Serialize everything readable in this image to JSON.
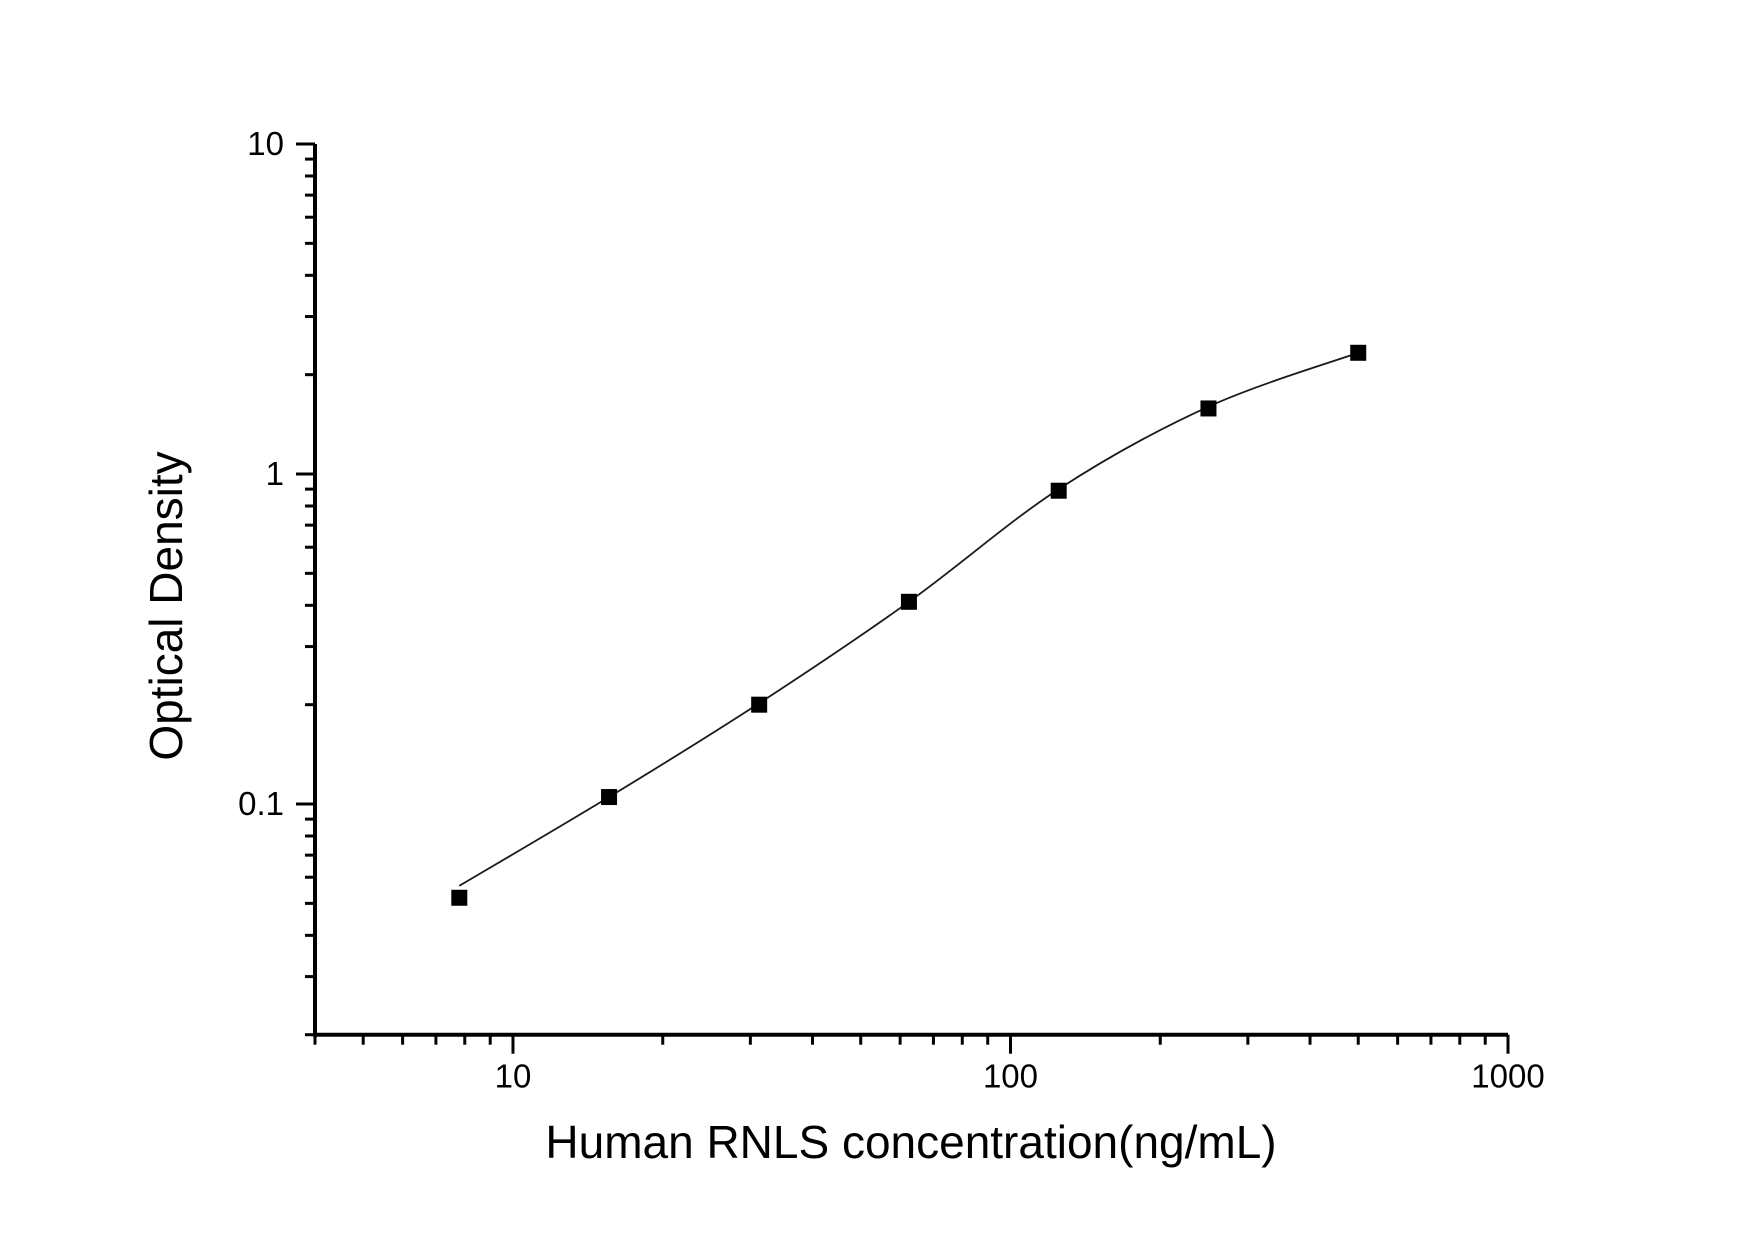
{
  "figure": {
    "background_color": "#ffffff",
    "axis_color": "#000000",
    "text_color": "#000000"
  },
  "chart_data": {
    "type": "scatter",
    "title": "",
    "xlabel": "Human RNLS concentration(ng/mL)",
    "ylabel": "Optical Density",
    "x_scale": "log",
    "y_scale": "log",
    "xlim": [
      4,
      1000
    ],
    "ylim": [
      0.02,
      10
    ],
    "grid": false,
    "legend": null,
    "x_major_ticks": [
      10,
      100,
      1000
    ],
    "x_major_tick_labels": [
      "10",
      "100",
      "1000"
    ],
    "x_minor_ticks": [
      4,
      5,
      6,
      7,
      8,
      9,
      20,
      30,
      40,
      50,
      60,
      70,
      80,
      90,
      200,
      300,
      400,
      500,
      600,
      700,
      800,
      900
    ],
    "y_major_ticks": [
      0.1,
      1,
      10
    ],
    "y_major_tick_labels": [
      "0.1",
      "1",
      "10"
    ],
    "y_minor_ticks": [
      0.02,
      0.03,
      0.04,
      0.05,
      0.06,
      0.07,
      0.08,
      0.09,
      0.2,
      0.3,
      0.4,
      0.5,
      0.6,
      0.7,
      0.8,
      0.9,
      2,
      3,
      4,
      5,
      6,
      7,
      8,
      9
    ],
    "marker": "filled-square",
    "marker_size_px": 16,
    "marker_color": "#000000",
    "line_color": "#1a1a1a",
    "points": [
      {
        "x": 7.8,
        "y": 0.052
      },
      {
        "x": 15.6,
        "y": 0.105
      },
      {
        "x": 31.25,
        "y": 0.2
      },
      {
        "x": 62.5,
        "y": 0.41
      },
      {
        "x": 125,
        "y": 0.89
      },
      {
        "x": 250,
        "y": 1.58
      },
      {
        "x": 500,
        "y": 2.33
      }
    ],
    "fit_curve": {
      "style": "smooth sigmoidal fit through points",
      "x": [
        7.8,
        15.6,
        31.25,
        62.5,
        125,
        250,
        500
      ],
      "y": [
        0.0565,
        0.105,
        0.202,
        0.41,
        0.9,
        1.6,
        2.33
      ]
    }
  }
}
